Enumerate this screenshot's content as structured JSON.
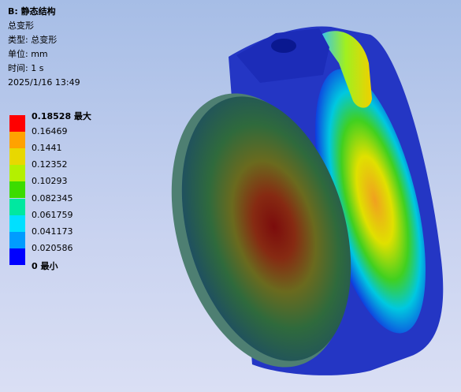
{
  "header": {
    "title": "B: 静态结构",
    "lines": [
      "总变形",
      "类型: 总变形",
      "单位: mm",
      "时间: 1 s",
      "2025/1/16 13:49"
    ]
  },
  "legend": {
    "labels": [
      "0.18528 最大",
      "0.16469",
      "0.1441",
      "0.12352",
      "0.10293",
      "0.082345",
      "0.061759",
      "0.041173",
      "0.020586",
      "0 最小"
    ],
    "colors": [
      "#ff0000",
      "#ffa200",
      "#e8d800",
      "#b4f000",
      "#3cdc00",
      "#00e8a0",
      "#00e0ff",
      "#009cff",
      "#0000ff"
    ]
  }
}
